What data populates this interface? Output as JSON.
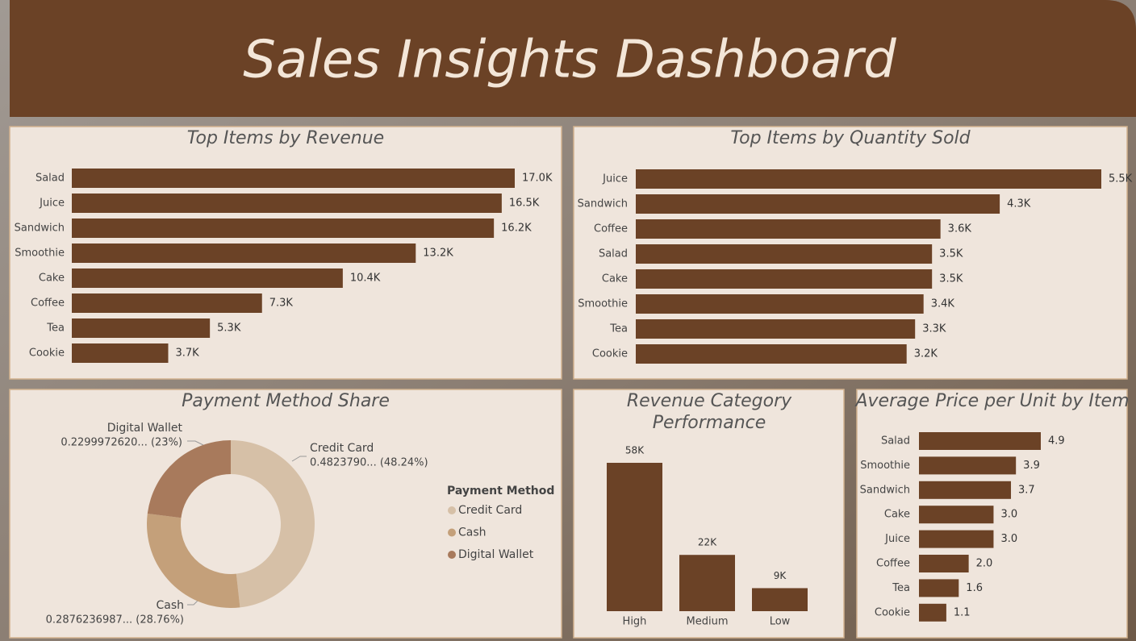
{
  "title": "Sales Insights Dashboard",
  "chart_data": [
    {
      "type": "bar",
      "title": "Top Items by Revenue",
      "color": "#6b4226",
      "categories": [
        "Salad",
        "Juice",
        "Sandwich",
        "Smoothie",
        "Cake",
        "Coffee",
        "Tea",
        "Cookie"
      ],
      "values": [
        17.0,
        16.5,
        16.2,
        13.2,
        10.4,
        7.3,
        5.3,
        3.7
      ],
      "value_labels": [
        "17.0K",
        "16.5K",
        "16.2K",
        "13.2K",
        "10.4K",
        "7.3K",
        "5.3K",
        "3.7K"
      ]
    },
    {
      "type": "bar",
      "title": "Top Items by Quantity Sold",
      "color": "#6b4226",
      "categories": [
        "Juice",
        "Sandwich",
        "Coffee",
        "Salad",
        "Cake",
        "Smoothie",
        "Tea",
        "Cookie"
      ],
      "values": [
        5.5,
        4.3,
        3.6,
        3.5,
        3.5,
        3.4,
        3.3,
        3.2
      ],
      "value_labels": [
        "5.5K",
        "4.3K",
        "3.6K",
        "3.5K",
        "3.5K",
        "3.4K",
        "3.3K",
        "3.2K"
      ]
    },
    {
      "type": "donut",
      "title": "Payment Method Share",
      "legend_title": "Payment Method",
      "categories": [
        "Credit Card",
        "Cash",
        "Digital Wallet"
      ],
      "values": [
        48.24,
        28.76,
        23
      ],
      "value_labels": [
        "0.4823790... (48.24%)",
        "0.2876236987... (28.76%)",
        "0.2299972620... (23%)"
      ],
      "colors": [
        "#d6c0a7",
        "#c4a07a",
        "#a87a5c"
      ]
    },
    {
      "type": "column",
      "title": "Revenue Category Performance",
      "color": "#6b4226",
      "categories": [
        "High",
        "Medium",
        "Low"
      ],
      "values": [
        58,
        22,
        9
      ],
      "value_labels": [
        "58K",
        "22K",
        "9K"
      ]
    },
    {
      "type": "bar",
      "title": "Average Price per Unit by Item",
      "color": "#6b4226",
      "categories": [
        "Salad",
        "Smoothie",
        "Sandwich",
        "Cake",
        "Juice",
        "Coffee",
        "Tea",
        "Cookie"
      ],
      "values": [
        4.9,
        3.9,
        3.7,
        3.0,
        3.0,
        2.0,
        1.6,
        1.1
      ],
      "value_labels": [
        "4.9",
        "3.9",
        "3.7",
        "3.0",
        "3.0",
        "2.0",
        "1.6",
        "1.1"
      ]
    }
  ]
}
